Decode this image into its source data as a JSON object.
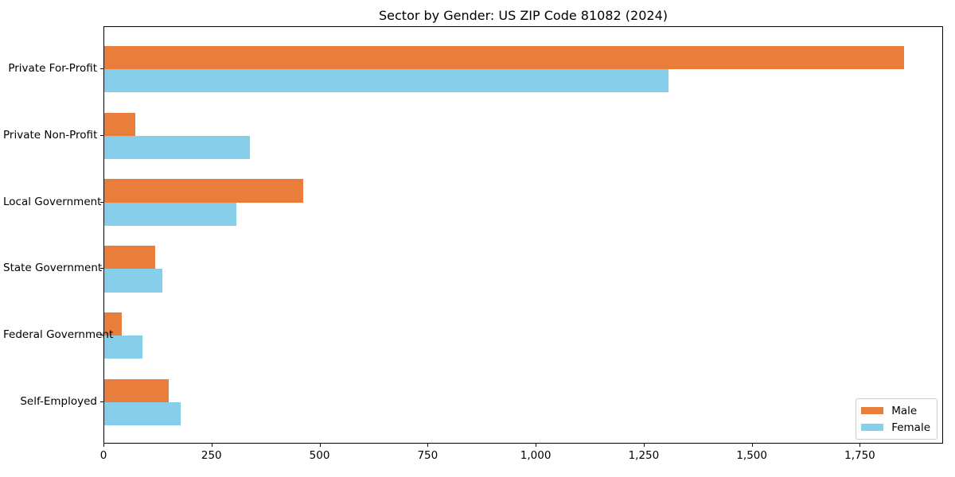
{
  "title": "Sector by Gender: US ZIP Code 81082 (2024)",
  "chart_data": {
    "type": "bar",
    "orientation": "horizontal",
    "title": "Sector by Gender: US ZIP Code 81082 (2024)",
    "categories": [
      "Private For-Profit",
      "Private Non-Profit",
      "Local Government",
      "State Government",
      "Federal Government",
      "Self-Employed"
    ],
    "series": [
      {
        "name": "Male",
        "color": "#E87D3C",
        "values": [
          1850,
          72,
          460,
          118,
          41,
          149
        ]
      },
      {
        "name": "Female",
        "color": "#87CEEB",
        "values": [
          1305,
          337,
          305,
          135,
          89,
          177
        ]
      }
    ],
    "xlabel": "",
    "ylabel": "",
    "xlim": [
      0,
      1942.5
    ],
    "xticks": {
      "values": [
        0,
        250,
        500,
        750,
        1000,
        1250,
        1500,
        1750
      ],
      "labels": [
        "0",
        "250",
        "500",
        "750",
        "1,000",
        "1,250",
        "1,500",
        "1,750"
      ]
    },
    "legend": {
      "position": "lower right",
      "entries": [
        "Male",
        "Female"
      ]
    },
    "grid": false,
    "background_color": "#ffffff",
    "axis_color": "#000000",
    "bar_group_order": "male-above-female"
  }
}
